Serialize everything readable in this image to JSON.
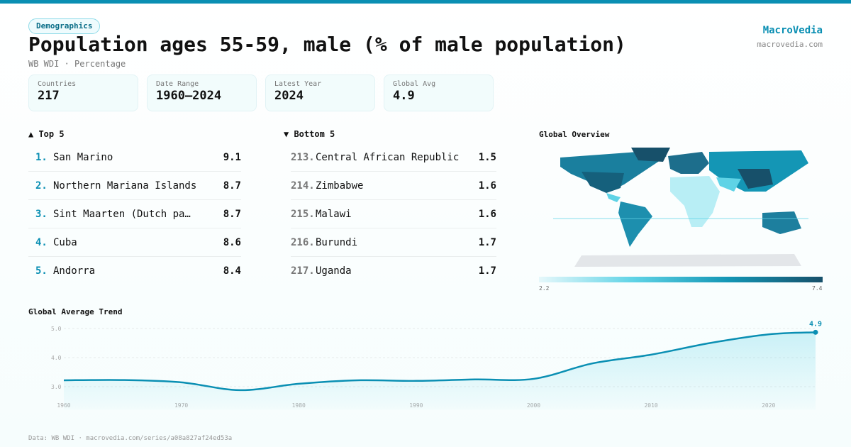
{
  "header": {
    "tag": "Demographics",
    "title": "Population ages 55-59, male (% of male population)",
    "subtitle": "WB WDI · Percentage",
    "brand": "MacroVedia",
    "brand_url": "macrovedia.com"
  },
  "cards": [
    {
      "label": "Countries",
      "value": "217"
    },
    {
      "label": "Date Range",
      "value": "1960–2024"
    },
    {
      "label": "Latest Year",
      "value": "2024"
    },
    {
      "label": "Global Avg",
      "value": "4.9"
    }
  ],
  "top": {
    "title": "▲ Top 5",
    "items": [
      {
        "rank": "1.",
        "name": "San Marino",
        "value": "9.1"
      },
      {
        "rank": "2.",
        "name": "Northern Mariana Islands",
        "value": "8.7"
      },
      {
        "rank": "3.",
        "name": "Sint Maarten (Dutch pa…",
        "value": "8.7"
      },
      {
        "rank": "4.",
        "name": "Cuba",
        "value": "8.6"
      },
      {
        "rank": "5.",
        "name": "Andorra",
        "value": "8.4"
      }
    ]
  },
  "bottom": {
    "title": "▼ Bottom 5",
    "items": [
      {
        "rank": "213.",
        "name": "Central African Republic",
        "value": "1.5"
      },
      {
        "rank": "214.",
        "name": "Zimbabwe",
        "value": "1.6"
      },
      {
        "rank": "215.",
        "name": "Malawi",
        "value": "1.6"
      },
      {
        "rank": "216.",
        "name": "Burundi",
        "value": "1.7"
      },
      {
        "rank": "217.",
        "name": "Uganda",
        "value": "1.7"
      }
    ]
  },
  "map": {
    "title": "Global Overview",
    "legend_min": "2.2",
    "legend_max": "7.4",
    "colors": [
      "#e6f8fb",
      "#5fd3e6",
      "#1496b5",
      "#17506a"
    ]
  },
  "chart_data": {
    "type": "area",
    "title": "Global Average Trend",
    "x": [
      1960,
      1965,
      1970,
      1975,
      1980,
      1985,
      1990,
      1995,
      2000,
      2005,
      2010,
      2015,
      2020,
      2024
    ],
    "values": [
      3.22,
      3.23,
      3.15,
      2.88,
      3.1,
      3.22,
      3.2,
      3.25,
      3.27,
      3.8,
      4.1,
      4.5,
      4.8,
      4.87
    ],
    "yticks": [
      "3.0",
      "4.0",
      "5.0"
    ],
    "xticks": [
      "1960",
      "1970",
      "1980",
      "1990",
      "2000",
      "2010",
      "2020"
    ],
    "ylim": [
      2.6,
      5.0
    ],
    "xlim": [
      1960,
      2024
    ],
    "end_label": "4.9",
    "line_color": "#0a8fb3",
    "grid": true
  },
  "footer": "Data: WB WDI · macrovedia.com/series/a08a827af24ed53a"
}
